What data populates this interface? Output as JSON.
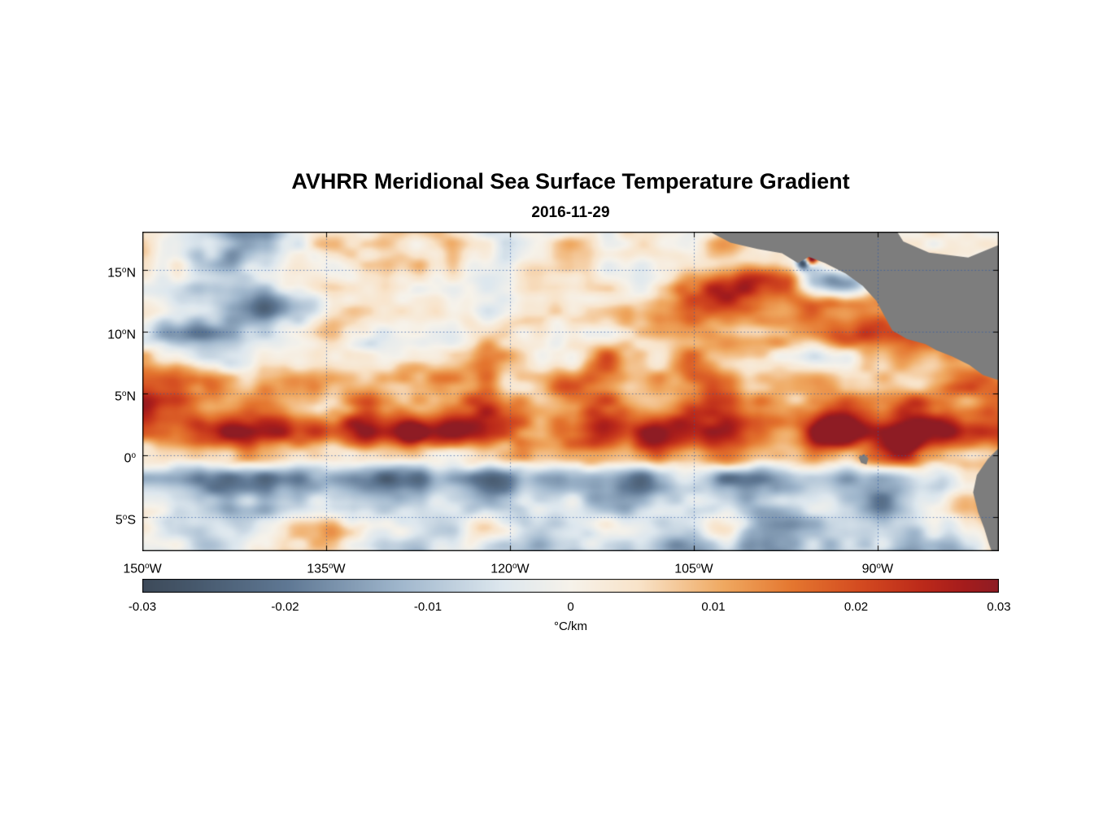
{
  "chart_data": {
    "type": "heatmap",
    "title": "AVHRR Meridional Sea Surface Temperature Gradient",
    "subtitle": "2016-11-29",
    "units": "°C/km",
    "lon_range": [
      -150,
      -80.1
    ],
    "lat_range": [
      -7.76,
      18.09
    ],
    "x_ticks": [
      {
        "deg": "150",
        "hem": "W",
        "lon": -150
      },
      {
        "deg": "135",
        "hem": "W",
        "lon": -135
      },
      {
        "deg": "120",
        "hem": "W",
        "lon": -120
      },
      {
        "deg": "105",
        "hem": "W",
        "lon": -105
      },
      {
        "deg": "90",
        "hem": "W",
        "lon": -90
      }
    ],
    "y_ticks": [
      {
        "deg": "15",
        "hem": "N",
        "lat": 15
      },
      {
        "deg": "10",
        "hem": "N",
        "lat": 10
      },
      {
        "deg": "5",
        "hem": "N",
        "lat": 5
      },
      {
        "deg": "0",
        "hem": "",
        "lat": 0
      },
      {
        "deg": "5",
        "hem": "S",
        "lat": -5
      }
    ],
    "colorbar": {
      "label": "°C/km",
      "min": -0.03,
      "max": 0.03,
      "ticks": [
        {
          "label": "-0.03",
          "value": -0.03
        },
        {
          "label": "-0.02",
          "value": -0.02
        },
        {
          "label": "-0.01",
          "value": -0.01
        },
        {
          "label": "0",
          "value": 0
        },
        {
          "label": "0.01",
          "value": 0.01
        },
        {
          "label": "0.02",
          "value": 0.02
        },
        {
          "label": "0.03",
          "value": 0.03
        }
      ]
    },
    "colormap": {
      "stops": [
        [
          0.0,
          "#3d4a59"
        ],
        [
          0.06,
          "#46586c"
        ],
        [
          0.17,
          "#5f7894"
        ],
        [
          0.3,
          "#9fb6cc"
        ],
        [
          0.42,
          "#dde7ee"
        ],
        [
          0.5,
          "#f6f2ea"
        ],
        [
          0.58,
          "#f8e3c9"
        ],
        [
          0.68,
          "#efa860"
        ],
        [
          0.76,
          "#e4762f"
        ],
        [
          0.84,
          "#d34a20"
        ],
        [
          0.91,
          "#bc2a1a"
        ],
        [
          0.96,
          "#a51c1c"
        ],
        [
          1.0,
          "#8e1c24"
        ]
      ]
    },
    "grid": {
      "lon0": -150,
      "dlon": 2.5,
      "lat0": 18,
      "dlat": 2,
      "value_scale": 0.001,
      "values": [
        [
          2,
          1,
          -8,
          -16,
          -12,
          2,
          3,
          4,
          8,
          4,
          2,
          -6,
          -10,
          -6,
          2,
          4,
          3,
          2,
          4,
          6,
          5,
          3,
          2,
          1,
          1,
          2,
          2,
          1,
          1
        ],
        [
          3,
          2,
          -10,
          -18,
          -10,
          0,
          4,
          6,
          6,
          3,
          0,
          -4,
          -8,
          -4,
          3,
          5,
          4,
          3,
          5,
          8,
          6,
          2,
          4,
          5,
          3,
          2,
          2,
          2,
          2
        ],
        [
          2,
          0,
          -6,
          -8,
          -4,
          2,
          5,
          3,
          2,
          0,
          -3,
          -5,
          -3,
          2,
          4,
          3,
          2,
          6,
          14,
          22,
          26,
          20,
          -12,
          -16,
          6,
          8,
          4,
          2,
          1
        ],
        [
          0,
          -2,
          -6,
          -14,
          -18,
          -12,
          -4,
          2,
          0,
          -2,
          -4,
          -2,
          0,
          3,
          2,
          0,
          4,
          10,
          18,
          24,
          20,
          12,
          18,
          22,
          12,
          6,
          -8,
          -4,
          0
        ],
        [
          -3,
          -10,
          -14,
          -8,
          -2,
          2,
          4,
          2,
          -2,
          -6,
          -3,
          2,
          4,
          2,
          0,
          2,
          5,
          8,
          10,
          8,
          6,
          10,
          14,
          18,
          20,
          16,
          10,
          -6,
          -12
        ],
        [
          6,
          2,
          -4,
          -2,
          2,
          5,
          3,
          -2,
          -4,
          0,
          6,
          10,
          6,
          2,
          8,
          12,
          8,
          4,
          10,
          14,
          10,
          6,
          2,
          6,
          10,
          14,
          8,
          4,
          -6
        ],
        [
          18,
          22,
          12,
          6,
          10,
          14,
          8,
          4,
          8,
          14,
          18,
          12,
          6,
          10,
          16,
          12,
          6,
          12,
          18,
          14,
          8,
          12,
          16,
          10,
          6,
          10,
          14,
          18,
          10
        ],
        [
          22,
          16,
          10,
          14,
          18,
          12,
          8,
          14,
          10,
          8,
          14,
          18,
          12,
          8,
          12,
          16,
          10,
          8,
          14,
          18,
          12,
          8,
          10,
          14,
          18,
          22,
          16,
          12,
          16
        ],
        [
          12,
          16,
          22,
          28,
          24,
          18,
          26,
          30,
          22,
          18,
          26,
          30,
          22,
          16,
          24,
          30,
          22,
          16,
          26,
          30,
          24,
          18,
          26,
          30,
          26,
          28,
          30,
          24,
          20
        ],
        [
          4,
          6,
          8,
          10,
          6,
          4,
          8,
          10,
          6,
          4,
          8,
          10,
          6,
          4,
          8,
          10,
          6,
          4,
          8,
          12,
          8,
          6,
          10,
          14,
          18,
          22,
          12,
          8,
          14
        ],
        [
          -8,
          -12,
          -16,
          -20,
          -22,
          -18,
          -14,
          -20,
          -22,
          -16,
          -12,
          -18,
          -22,
          -16,
          -12,
          -18,
          -20,
          -14,
          -10,
          -16,
          -20,
          -14,
          -10,
          -16,
          -20,
          -16,
          -10,
          6,
          12
        ],
        [
          -4,
          -8,
          -6,
          -10,
          -14,
          -10,
          -6,
          -10,
          -12,
          -8,
          -5,
          -8,
          -12,
          -8,
          -5,
          -8,
          -10,
          -6,
          -4,
          -8,
          -12,
          -8,
          -5,
          -10,
          -14,
          -10,
          -4,
          8,
          16
        ],
        [
          2,
          -4,
          -10,
          -6,
          2,
          8,
          12,
          6,
          -2,
          -8,
          -4,
          2,
          -4,
          -10,
          -6,
          -2,
          -6,
          -10,
          -6,
          -2,
          -8,
          -12,
          -8,
          -4,
          -10,
          -14,
          -8,
          -2,
          10
        ],
        [
          0,
          -6,
          -12,
          -8,
          -2,
          4,
          8,
          2,
          -4,
          -10,
          -6,
          -2,
          -6,
          -12,
          -8,
          -4,
          -8,
          -12,
          -8,
          -4,
          -10,
          -16,
          -12,
          -6,
          -12,
          -18,
          -12,
          -6,
          4
        ]
      ]
    },
    "noise": {
      "amplitude": 0.007,
      "seed": 11
    },
    "hotspots": [
      {
        "lon": -95.4,
        "lat": 15.9,
        "value": 0.035,
        "radius": 0.45
      },
      {
        "lon": -96.1,
        "lat": 15.55,
        "value": -0.03,
        "radius": 0.5
      },
      {
        "lon": -128,
        "lat": 1.8,
        "value": 0.02,
        "radius": 1.2
      },
      {
        "lon": -108,
        "lat": 1.6,
        "value": 0.02,
        "radius": 1.5
      },
      {
        "lon": -94,
        "lat": 1.8,
        "value": 0.02,
        "radius": 1.5
      },
      {
        "lon": -88,
        "lat": 0.8,
        "value": 0.018,
        "radius": 1.2
      },
      {
        "lon": -80.6,
        "lat": 10.3,
        "value": -0.02,
        "radius": 1.0
      }
    ],
    "land": {
      "color": "#7d7d7d",
      "polygons": [
        [
          [
            -104.3,
            18.4
          ],
          [
            -102.0,
            17.2
          ],
          [
            -99.8,
            16.7
          ],
          [
            -97.8,
            16.35
          ],
          [
            -96.5,
            15.55
          ],
          [
            -95.6,
            16.05
          ],
          [
            -94.3,
            15.55
          ],
          [
            -92.6,
            14.7
          ],
          [
            -91.2,
            13.7
          ],
          [
            -90.1,
            12.5
          ],
          [
            -89.4,
            11.2
          ],
          [
            -88.8,
            10.1
          ],
          [
            -87.6,
            9.4
          ],
          [
            -86.1,
            9.0
          ],
          [
            -85.2,
            8.5
          ],
          [
            -83.9,
            8.0
          ],
          [
            -82.5,
            7.3
          ],
          [
            -81.4,
            6.5
          ],
          [
            -79.9,
            6.0
          ],
          [
            -79.9,
            17.1
          ],
          [
            -82.6,
            16.0
          ],
          [
            -85.8,
            16.4
          ],
          [
            -87.9,
            17.3
          ],
          [
            -88.6,
            18.4
          ]
        ],
        [
          [
            -79.9,
            0.8
          ],
          [
            -81.0,
            -0.3
          ],
          [
            -81.9,
            -1.6
          ],
          [
            -82.2,
            -3.0
          ],
          [
            -81.8,
            -4.6
          ],
          [
            -81.3,
            -5.9
          ],
          [
            -80.9,
            -7.2
          ],
          [
            -80.6,
            -8.0
          ],
          [
            -79.9,
            -8.0
          ]
        ]
      ],
      "islands": [
        [
          [
            -91.55,
            -0.15
          ],
          [
            -91.1,
            0.1
          ],
          [
            -90.75,
            -0.25
          ],
          [
            -90.9,
            -0.75
          ],
          [
            -91.35,
            -0.6
          ]
        ]
      ]
    },
    "style": {
      "gridline_color": "rgba(45,90,165,0.75)",
      "frame_color": "#000000",
      "background": "#ffffff"
    }
  }
}
